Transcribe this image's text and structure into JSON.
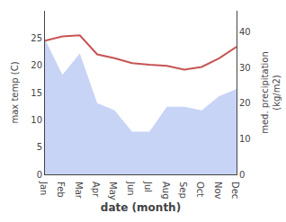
{
  "chart_data": {
    "type": "line",
    "xlabel": "date (month)",
    "ylabel": "max temp (C)",
    "y2label": "med. precipitation\n(kg/m2)",
    "categories": [
      "Jan",
      "Feb",
      "Mar",
      "Apr",
      "May",
      "Jun",
      "Jul",
      "Aug",
      "Sep",
      "Oct",
      "Nov",
      "Dec"
    ],
    "series": [
      {
        "type": "area",
        "axis": "y2",
        "color": "#c8d4f5",
        "values": [
          38,
          28,
          34,
          20,
          18,
          12,
          12,
          19,
          19,
          18,
          22,
          24
        ]
      },
      {
        "type": "line",
        "color": "#c75454",
        "values": [
          24.5,
          25.3,
          25.5,
          22.0,
          21.3,
          20.4,
          20.1,
          19.9,
          19.2,
          19.7,
          21.3,
          23.4
        ]
      }
    ],
    "ylim": [
      0,
      30
    ],
    "yticks": [
      0,
      5,
      10,
      15,
      20,
      25
    ],
    "y2lim": [
      0,
      46
    ],
    "y2ticks": [
      0,
      10,
      20,
      30,
      40
    ],
    "grid": false
  }
}
